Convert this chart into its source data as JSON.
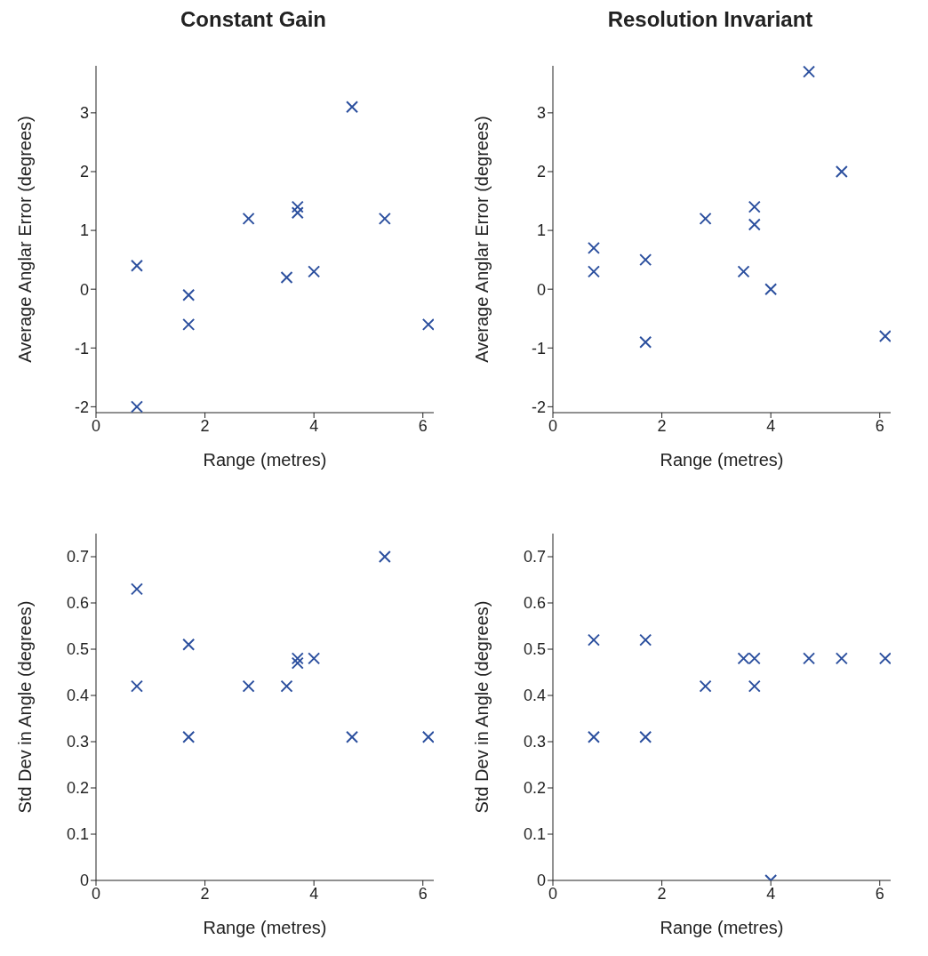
{
  "chart_data": [
    {
      "type": "scatter",
      "title": "Constant Gain",
      "xlabel": "Range (metres)",
      "ylabel": "Average Anglar Error (degrees)",
      "marker": "cross",
      "color": "#2b4f9e",
      "xlim": [
        0,
        6.2
      ],
      "xticks": [
        0,
        2,
        4,
        6
      ],
      "ylim": [
        -2.1,
        3.8
      ],
      "yticks": [
        -2,
        -1,
        0,
        1,
        2,
        3
      ],
      "x": [
        0.75,
        0.75,
        1.7,
        1.7,
        2.8,
        3.5,
        3.7,
        3.7,
        4.0,
        4.7,
        5.3,
        6.1
      ],
      "values": [
        0.4,
        -2.0,
        -0.1,
        -0.6,
        1.2,
        0.2,
        1.4,
        1.3,
        0.3,
        3.1,
        1.2,
        -0.6
      ]
    },
    {
      "type": "scatter",
      "title": "Resolution Invariant",
      "xlabel": "Range (metres)",
      "ylabel": "Average Anglar Error (degrees)",
      "marker": "cross",
      "color": "#2b4f9e",
      "xlim": [
        0,
        6.2
      ],
      "xticks": [
        0,
        2,
        4,
        6
      ],
      "ylim": [
        -2.1,
        3.8
      ],
      "yticks": [
        -2,
        -1,
        0,
        1,
        2,
        3
      ],
      "x": [
        0.75,
        0.75,
        1.7,
        1.7,
        2.8,
        3.5,
        3.7,
        3.7,
        4.0,
        4.7,
        5.3,
        6.1
      ],
      "values": [
        0.7,
        0.3,
        0.5,
        -0.9,
        1.2,
        0.3,
        1.4,
        1.1,
        0.0,
        3.7,
        2.0,
        -0.8
      ]
    },
    {
      "type": "scatter",
      "xlabel": "Range (metres)",
      "ylabel": "Std Dev in Angle (degrees)",
      "marker": "cross",
      "color": "#2b4f9e",
      "xlim": [
        0,
        6.2
      ],
      "xticks": [
        0,
        2,
        4,
        6
      ],
      "ylim": [
        0,
        0.75
      ],
      "yticks": [
        0,
        0.1,
        0.2,
        0.3,
        0.4,
        0.5,
        0.6,
        0.7
      ],
      "x": [
        0.75,
        0.75,
        1.7,
        1.7,
        2.8,
        3.5,
        3.7,
        3.7,
        4.0,
        4.7,
        5.3,
        6.1
      ],
      "values": [
        0.63,
        0.42,
        0.51,
        0.31,
        0.42,
        0.42,
        0.48,
        0.47,
        0.48,
        0.31,
        0.7,
        0.31
      ]
    },
    {
      "type": "scatter",
      "xlabel": "Range (metres)",
      "ylabel": "Std Dev in Angle (degrees)",
      "marker": "cross",
      "color": "#2b4f9e",
      "xlim": [
        0,
        6.2
      ],
      "xticks": [
        0,
        2,
        4,
        6
      ],
      "ylim": [
        0,
        0.75
      ],
      "yticks": [
        0,
        0.1,
        0.2,
        0.3,
        0.4,
        0.5,
        0.6,
        0.7
      ],
      "x": [
        0.75,
        0.75,
        1.7,
        1.7,
        2.8,
        3.5,
        3.7,
        3.7,
        4.0,
        4.7,
        5.3,
        6.1
      ],
      "values": [
        0.52,
        0.31,
        0.52,
        0.31,
        0.42,
        0.48,
        0.48,
        0.42,
        0.0,
        0.48,
        0.48,
        0.48
      ]
    }
  ]
}
